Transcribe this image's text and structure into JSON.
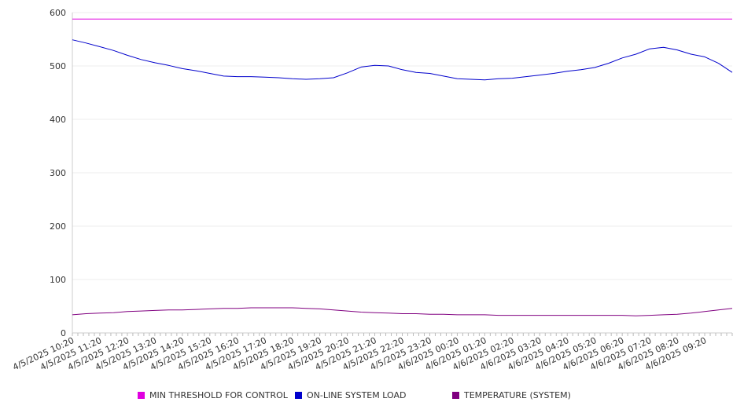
{
  "chart_data": {
    "type": "line",
    "title": "",
    "xlabel": "",
    "ylabel": "",
    "ylim": [
      0,
      600
    ],
    "y_ticks": [
      0,
      100,
      200,
      300,
      400,
      500,
      600
    ],
    "grid": true,
    "legend_position": "bottom",
    "x_tick_labels": [
      "4/5/2025 10:20",
      "4/5/2025 11:20",
      "4/5/2025 12:20",
      "4/5/2025 13:20",
      "4/5/2025 14:20",
      "4/5/2025 15:20",
      "4/5/2025 16:20",
      "4/5/2025 17:20",
      "4/5/2025 18:20",
      "4/5/2025 19:20",
      "4/5/2025 20:20",
      "4/5/2025 21:20",
      "4/5/2025 22:20",
      "4/5/2025 23:20",
      "4/6/2025 00:20",
      "4/6/2025 01:20",
      "4/6/2025 02:20",
      "4/6/2025 03:20",
      "4/6/2025 04:20",
      "4/6/2025 05:20",
      "4/6/2025 06:20",
      "4/6/2025 07:20",
      "4/6/2025 08:20",
      "4/6/2025 09:20"
    ],
    "x": [
      "4/5/2025 10:20",
      "4/5/2025 10:50",
      "4/5/2025 11:20",
      "4/5/2025 11:50",
      "4/5/2025 12:20",
      "4/5/2025 12:50",
      "4/5/2025 13:20",
      "4/5/2025 13:50",
      "4/5/2025 14:20",
      "4/5/2025 14:50",
      "4/5/2025 15:20",
      "4/5/2025 15:50",
      "4/5/2025 16:20",
      "4/5/2025 16:50",
      "4/5/2025 17:20",
      "4/5/2025 17:50",
      "4/5/2025 18:20",
      "4/5/2025 18:50",
      "4/5/2025 19:20",
      "4/5/2025 19:50",
      "4/5/2025 20:20",
      "4/5/2025 20:50",
      "4/5/2025 21:20",
      "4/5/2025 21:50",
      "4/5/2025 22:20",
      "4/5/2025 22:50",
      "4/5/2025 23:20",
      "4/5/2025 23:50",
      "4/6/2025 00:20",
      "4/6/2025 00:50",
      "4/6/2025 01:20",
      "4/6/2025 01:50",
      "4/6/2025 02:20",
      "4/6/2025 02:50",
      "4/6/2025 03:20",
      "4/6/2025 03:50",
      "4/6/2025 04:20",
      "4/6/2025 04:50",
      "4/6/2025 05:20",
      "4/6/2025 05:50",
      "4/6/2025 06:20",
      "4/6/2025 06:50",
      "4/6/2025 07:20",
      "4/6/2025 07:50",
      "4/6/2025 08:20",
      "4/6/2025 08:50",
      "4/6/2025 09:20",
      "4/6/2025 09:50",
      "4/6/2025 10:20"
    ],
    "series": [
      {
        "name": "MIN THRESHOLD FOR CONTROL",
        "color": "#e000e0",
        "values": [
          588,
          588,
          588,
          588,
          588,
          588,
          588,
          588,
          588,
          588,
          588,
          588,
          588,
          588,
          588,
          588,
          588,
          588,
          588,
          588,
          588,
          588,
          588,
          588,
          588,
          588,
          588,
          588,
          588,
          588,
          588,
          588,
          588,
          588,
          588,
          588,
          588,
          588,
          588,
          588,
          588,
          588,
          588,
          588,
          588,
          588,
          588,
          588,
          588
        ]
      },
      {
        "name": "ON-LINE SYSTEM LOAD",
        "color": "#0000cc",
        "values": [
          549,
          543,
          536,
          529,
          520,
          512,
          506,
          501,
          495,
          491,
          486,
          481,
          480,
          480,
          479,
          478,
          476,
          475,
          476,
          478,
          487,
          498,
          501,
          500,
          493,
          488,
          486,
          481,
          476,
          475,
          474,
          476,
          477,
          480,
          483,
          486,
          490,
          493,
          497,
          505,
          515,
          522,
          532,
          535,
          530,
          522,
          517,
          505,
          488
        ]
      },
      {
        "name": "TEMPERATURE (SYSTEM)",
        "color": "#800080",
        "values": [
          34,
          36,
          37,
          38,
          40,
          41,
          42,
          43,
          43,
          44,
          45,
          46,
          46,
          47,
          47,
          47,
          47,
          46,
          45,
          43,
          41,
          39,
          38,
          37,
          36,
          36,
          35,
          35,
          34,
          34,
          34,
          33,
          33,
          33,
          33,
          33,
          33,
          33,
          33,
          33,
          33,
          32,
          33,
          34,
          35,
          37,
          40,
          43,
          46
        ]
      }
    ]
  }
}
